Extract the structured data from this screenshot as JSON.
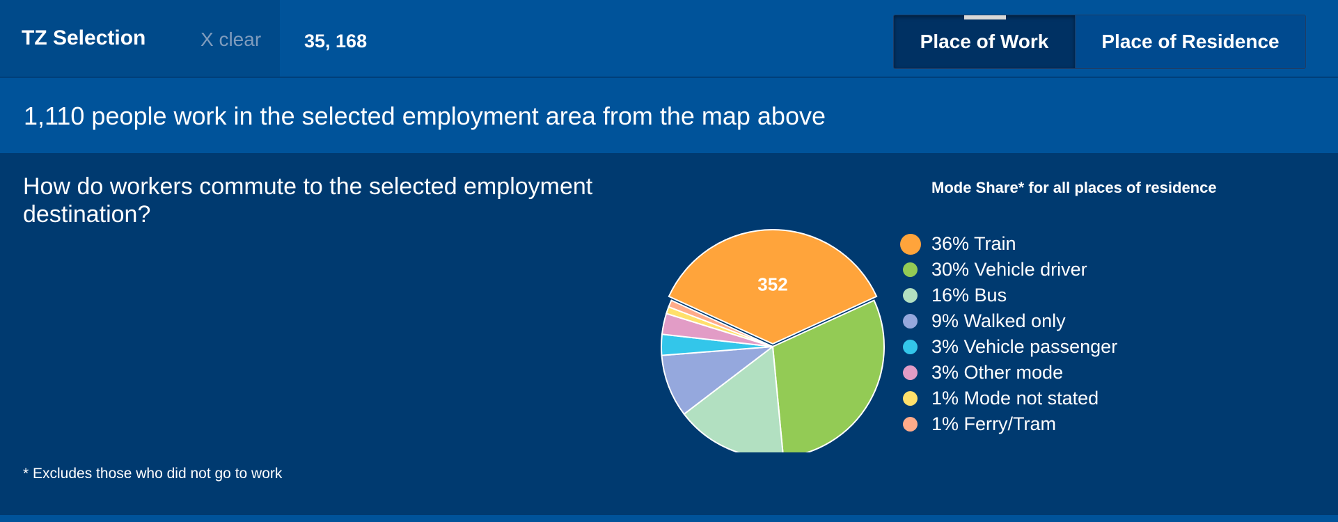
{
  "header": {
    "title": "TZ Selection",
    "clear_label": "X clear",
    "coordinates": "35, 168",
    "toggle": {
      "work_label": "Place of Work",
      "residence_label": "Place of Residence",
      "selected": "Place of Work"
    }
  },
  "summary": {
    "text": "1,110 people work in the selected employment area from the map above"
  },
  "panel": {
    "question": "How do workers commute to the selected employment destination?",
    "footnote": "* Excludes those who did not go to work"
  },
  "chart_data": {
    "type": "pie",
    "title": "Mode Share* for all places of residence",
    "slices": [
      {
        "label": "36% Train",
        "percent": 36,
        "value": 352,
        "color": "#ffa43b",
        "highlight": true
      },
      {
        "label": "30% Vehicle driver",
        "percent": 30,
        "color": "#93cb55"
      },
      {
        "label": "16% Bus",
        "percent": 16,
        "color": "#b2e0c1"
      },
      {
        "label": "9% Walked only",
        "percent": 9,
        "color": "#95a8dd"
      },
      {
        "label": "3% Vehicle passenger",
        "percent": 3,
        "color": "#33c6ea"
      },
      {
        "label": "3% Other mode",
        "percent": 3,
        "color": "#e29cc6"
      },
      {
        "label": "1% Mode not stated",
        "percent": 1,
        "color": "#ffe06b"
      },
      {
        "label": "1% Ferry/Tram",
        "percent": 1,
        "color": "#ffab8a"
      }
    ],
    "data_labels": [
      "352"
    ]
  },
  "colors": {
    "accent": "#00539a",
    "background": "#003a70"
  }
}
